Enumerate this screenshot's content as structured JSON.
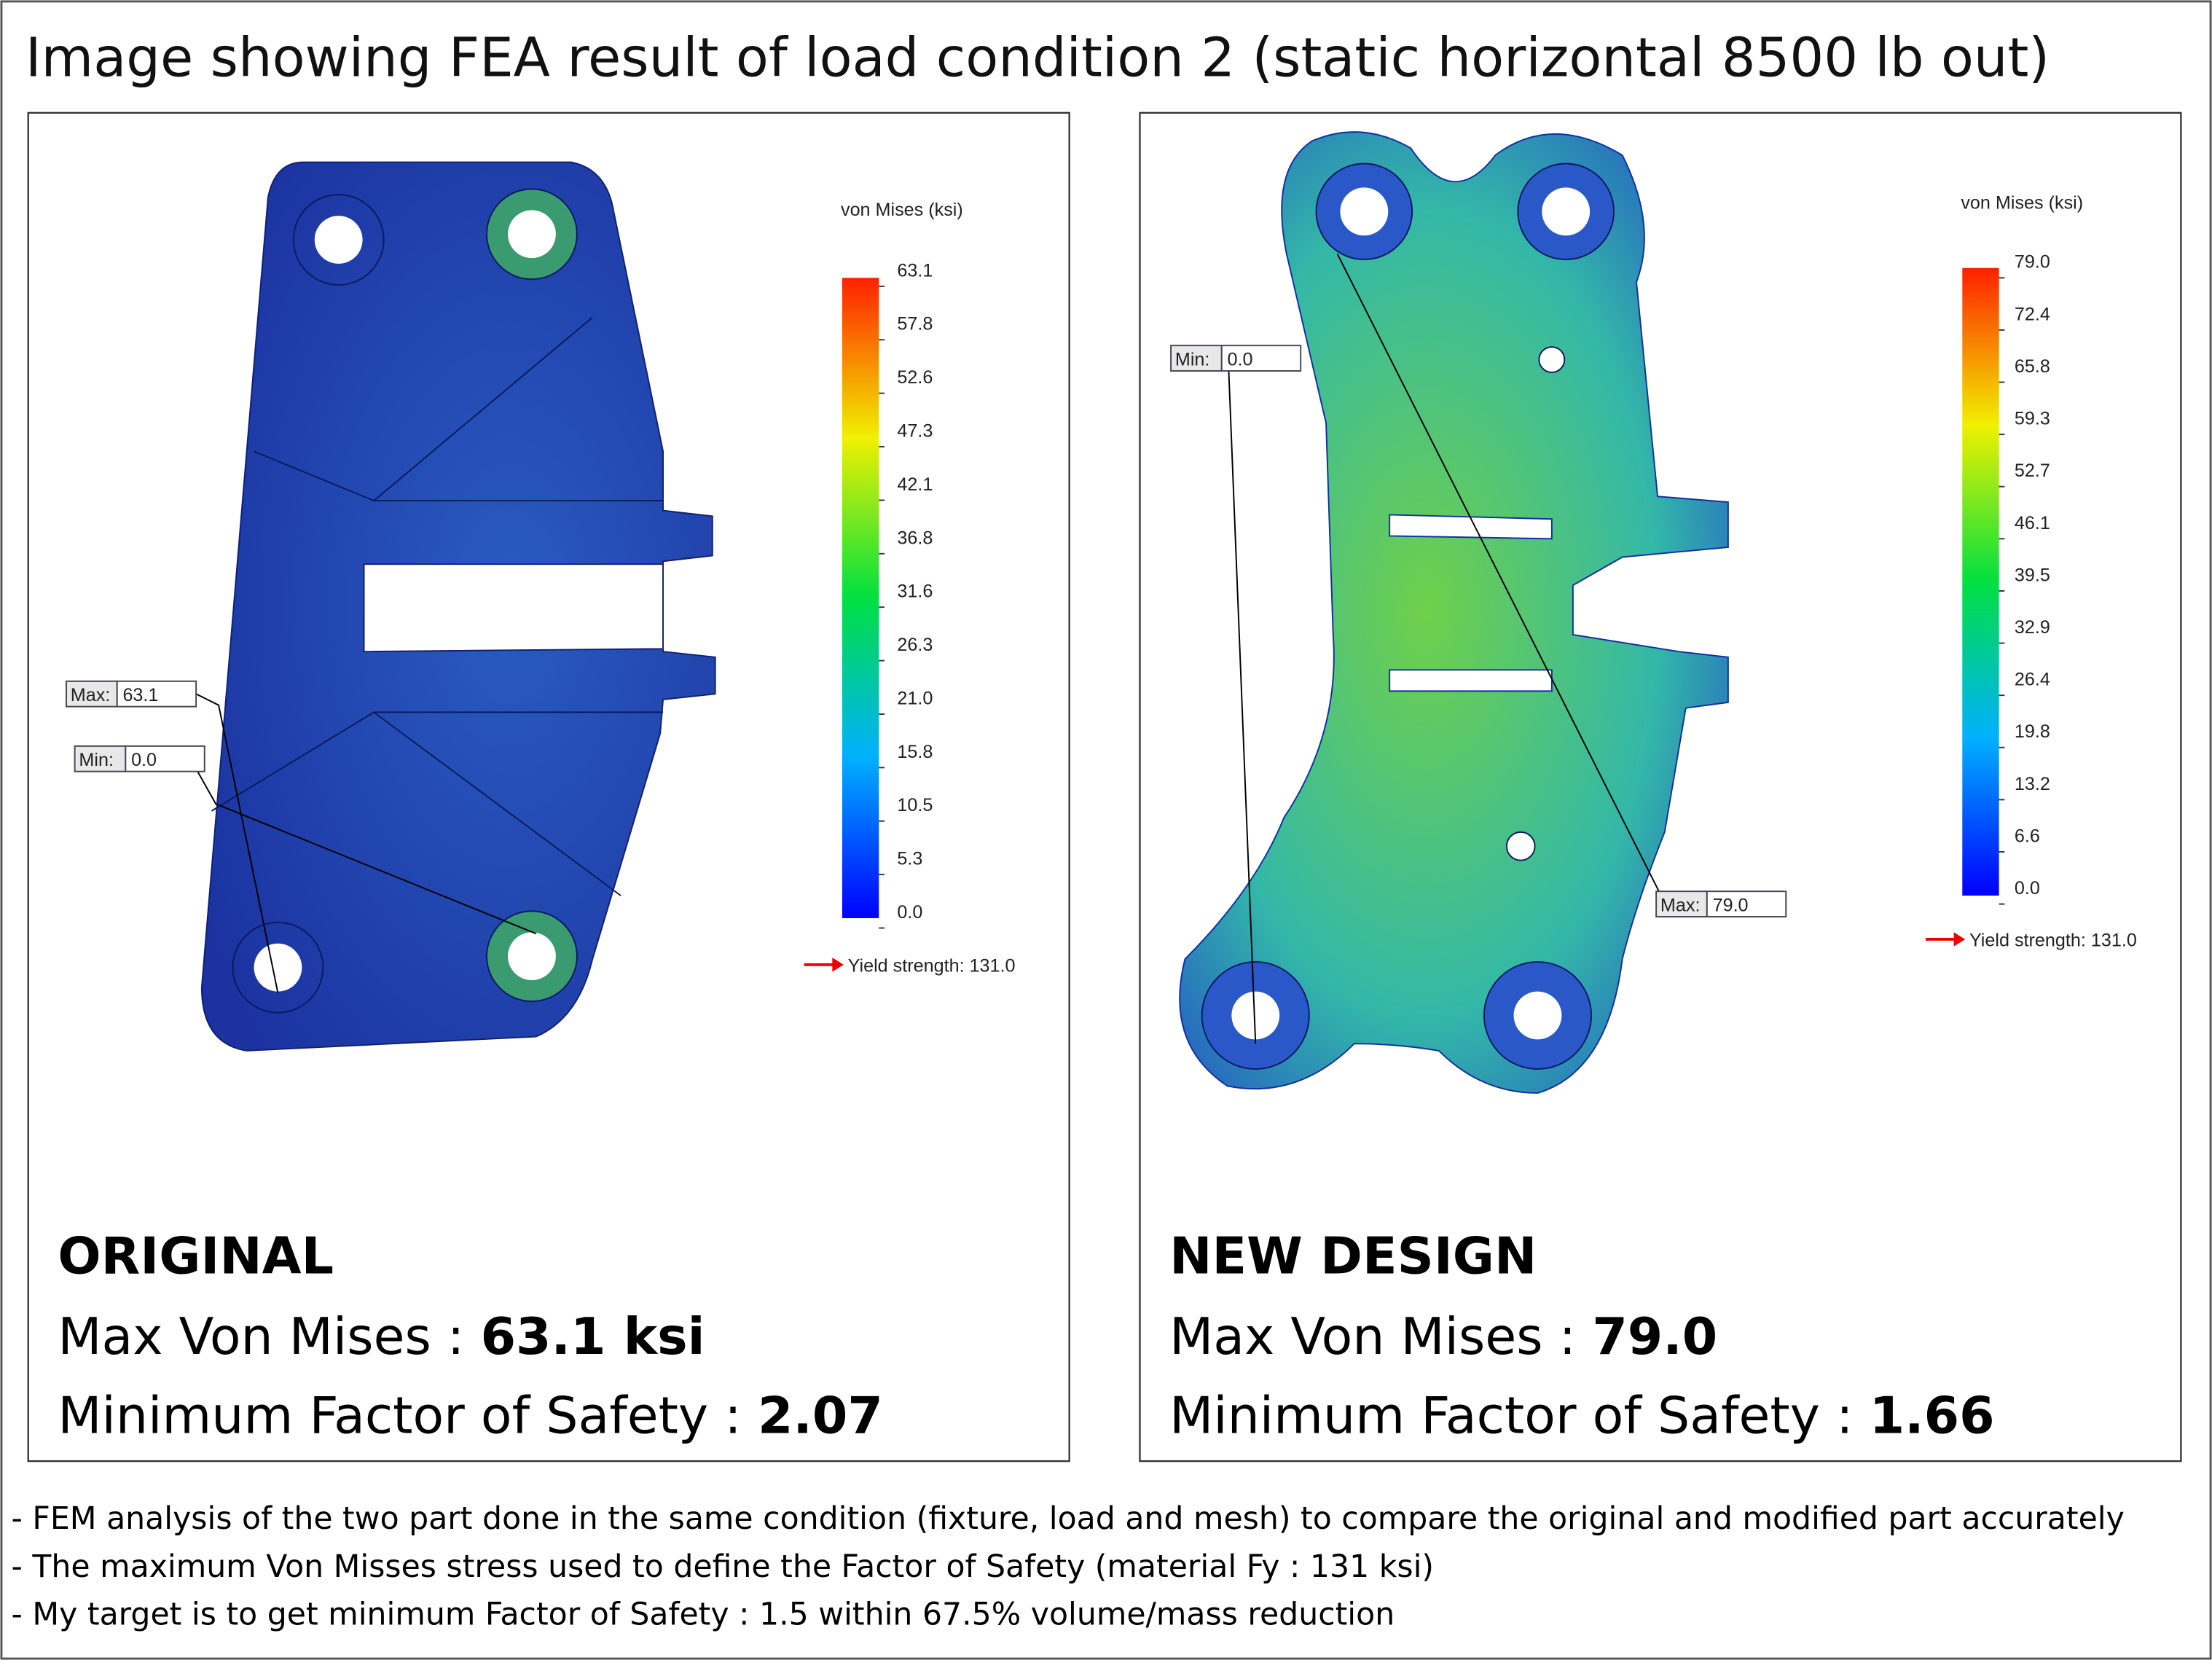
{
  "title": "Image showing FEA result of load condition 2 (static horizontal 8500 lb out)",
  "panels": [
    {
      "legend_title": "von Mises (ksi)",
      "scale": [
        "63.1",
        "57.8",
        "52.6",
        "47.3",
        "42.1",
        "36.8",
        "31.6",
        "26.3",
        "21.0",
        "15.8",
        "10.5",
        "5.3",
        "0.0"
      ],
      "yield": "Yield strength: 131.0",
      "max_tag": {
        "label": "Max:",
        "value": "63.1"
      },
      "min_tag": {
        "label": "Min:",
        "value": "0.0"
      },
      "heading": "ORIGINAL",
      "stress": {
        "label": "Max Von Mises : ",
        "value": "63.1 ksi"
      },
      "safety": {
        "label": "Minimum Factor of Safety : ",
        "value": "2.07"
      }
    },
    {
      "legend_title": "von Mises (ksi)",
      "scale": [
        "79.0",
        "72.4",
        "65.8",
        "59.3",
        "52.7",
        "46.1",
        "39.5",
        "32.9",
        "26.4",
        "19.8",
        "13.2",
        "6.6",
        "0.0"
      ],
      "yield": "Yield strength: 131.0",
      "max_tag": {
        "label": "Max:",
        "value": "79.0"
      },
      "min_tag": {
        "label": "Min:",
        "value": "0.0"
      },
      "heading": "NEW DESIGN",
      "stress": {
        "label": "Max Von Mises : ",
        "value": "79.0"
      },
      "safety": {
        "label": "Minimum Factor of Safety : ",
        "value": "1.66"
      }
    }
  ],
  "notes": [
    "- FEM analysis of the two part done in the same condition (fixture, load and mesh) to compare the original and modified part accurately",
    "- The maximum Von Misses stress used to define the Factor of Safety (material Fy : 131 ksi)",
    "- My target is to get minimum Factor of Safety : 1.5 within 67.5% volume/mass reduction"
  ]
}
